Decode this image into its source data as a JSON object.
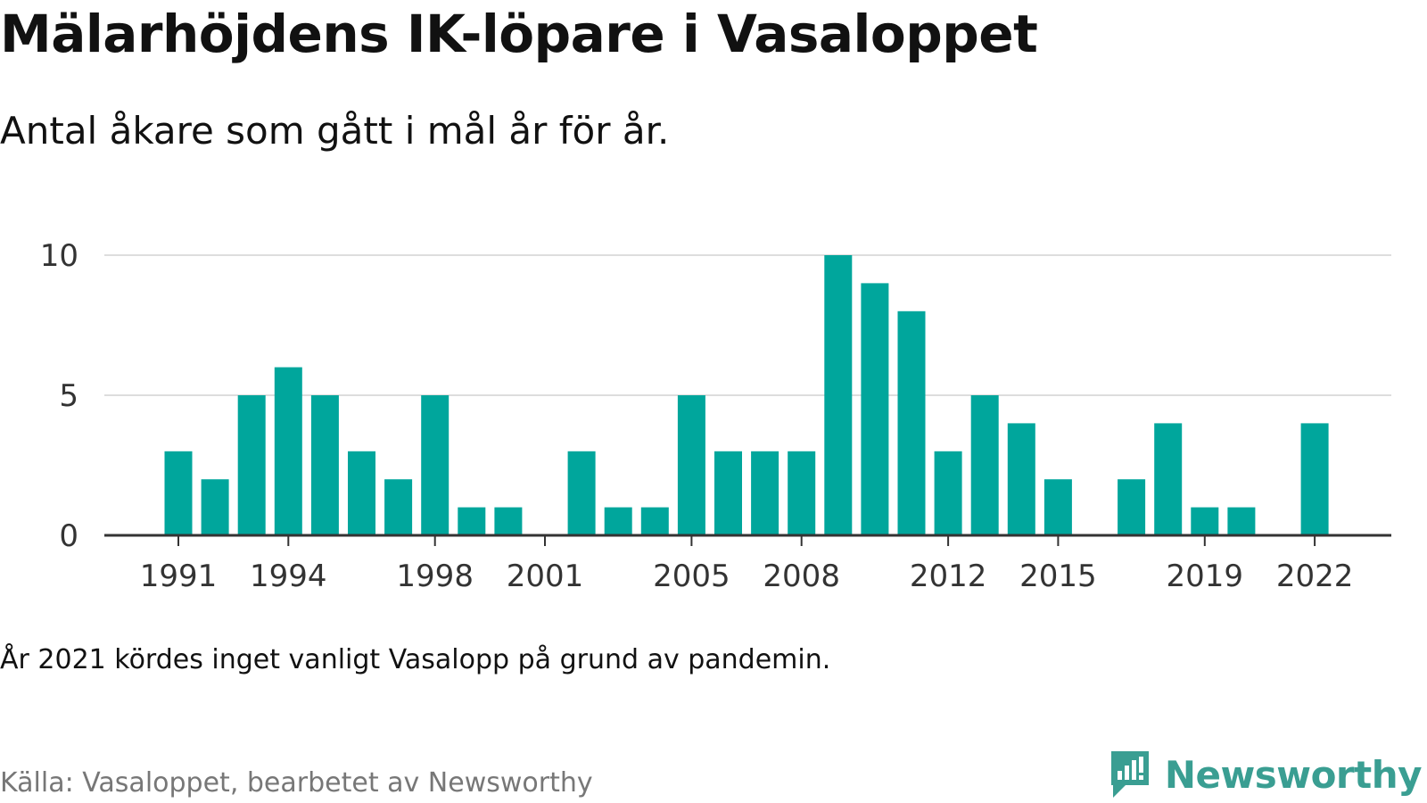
{
  "header": {
    "title": "Mälarhöjdens IK-löpare i Vasaloppet",
    "subtitle": "Antal åkare som gått i mål år för år."
  },
  "footer": {
    "note": "År 2021 kördes inget vanligt Vasalopp på grund av pandemin.",
    "source": "Källa: Vasaloppet, bearbetet av Newsworthy",
    "brand": "Newsworthy",
    "brand_icon": "newsworthy-logo-icon"
  },
  "colors": {
    "bar": "#00a69c",
    "grid": "#dddddd",
    "axis": "#333333",
    "brand": "#3a9e92"
  },
  "chart_data": {
    "type": "bar",
    "categories": [
      "1991",
      "1992",
      "1993",
      "1994",
      "1995",
      "1996",
      "1997",
      "1998",
      "1999",
      "2000",
      "2001",
      "2002",
      "2003",
      "2004",
      "2005",
      "2006",
      "2007",
      "2008",
      "2009",
      "2010",
      "2011",
      "2012",
      "2013",
      "2014",
      "2015",
      "2016",
      "2017",
      "2018",
      "2019",
      "2020",
      "2021",
      "2022"
    ],
    "values": [
      3,
      2,
      5,
      6,
      5,
      3,
      2,
      5,
      1,
      1,
      0,
      3,
      1,
      1,
      5,
      3,
      3,
      3,
      10,
      9,
      8,
      3,
      5,
      4,
      2,
      0,
      2,
      4,
      1,
      1,
      0,
      4
    ],
    "x_tick_labels": [
      "1991",
      "1994",
      "1998",
      "2001",
      "2005",
      "2008",
      "2012",
      "2015",
      "2019",
      "2022"
    ],
    "y_ticks": [
      "0",
      "5",
      "10"
    ],
    "ylim": [
      0,
      10
    ],
    "grid": true,
    "legend": "none"
  }
}
